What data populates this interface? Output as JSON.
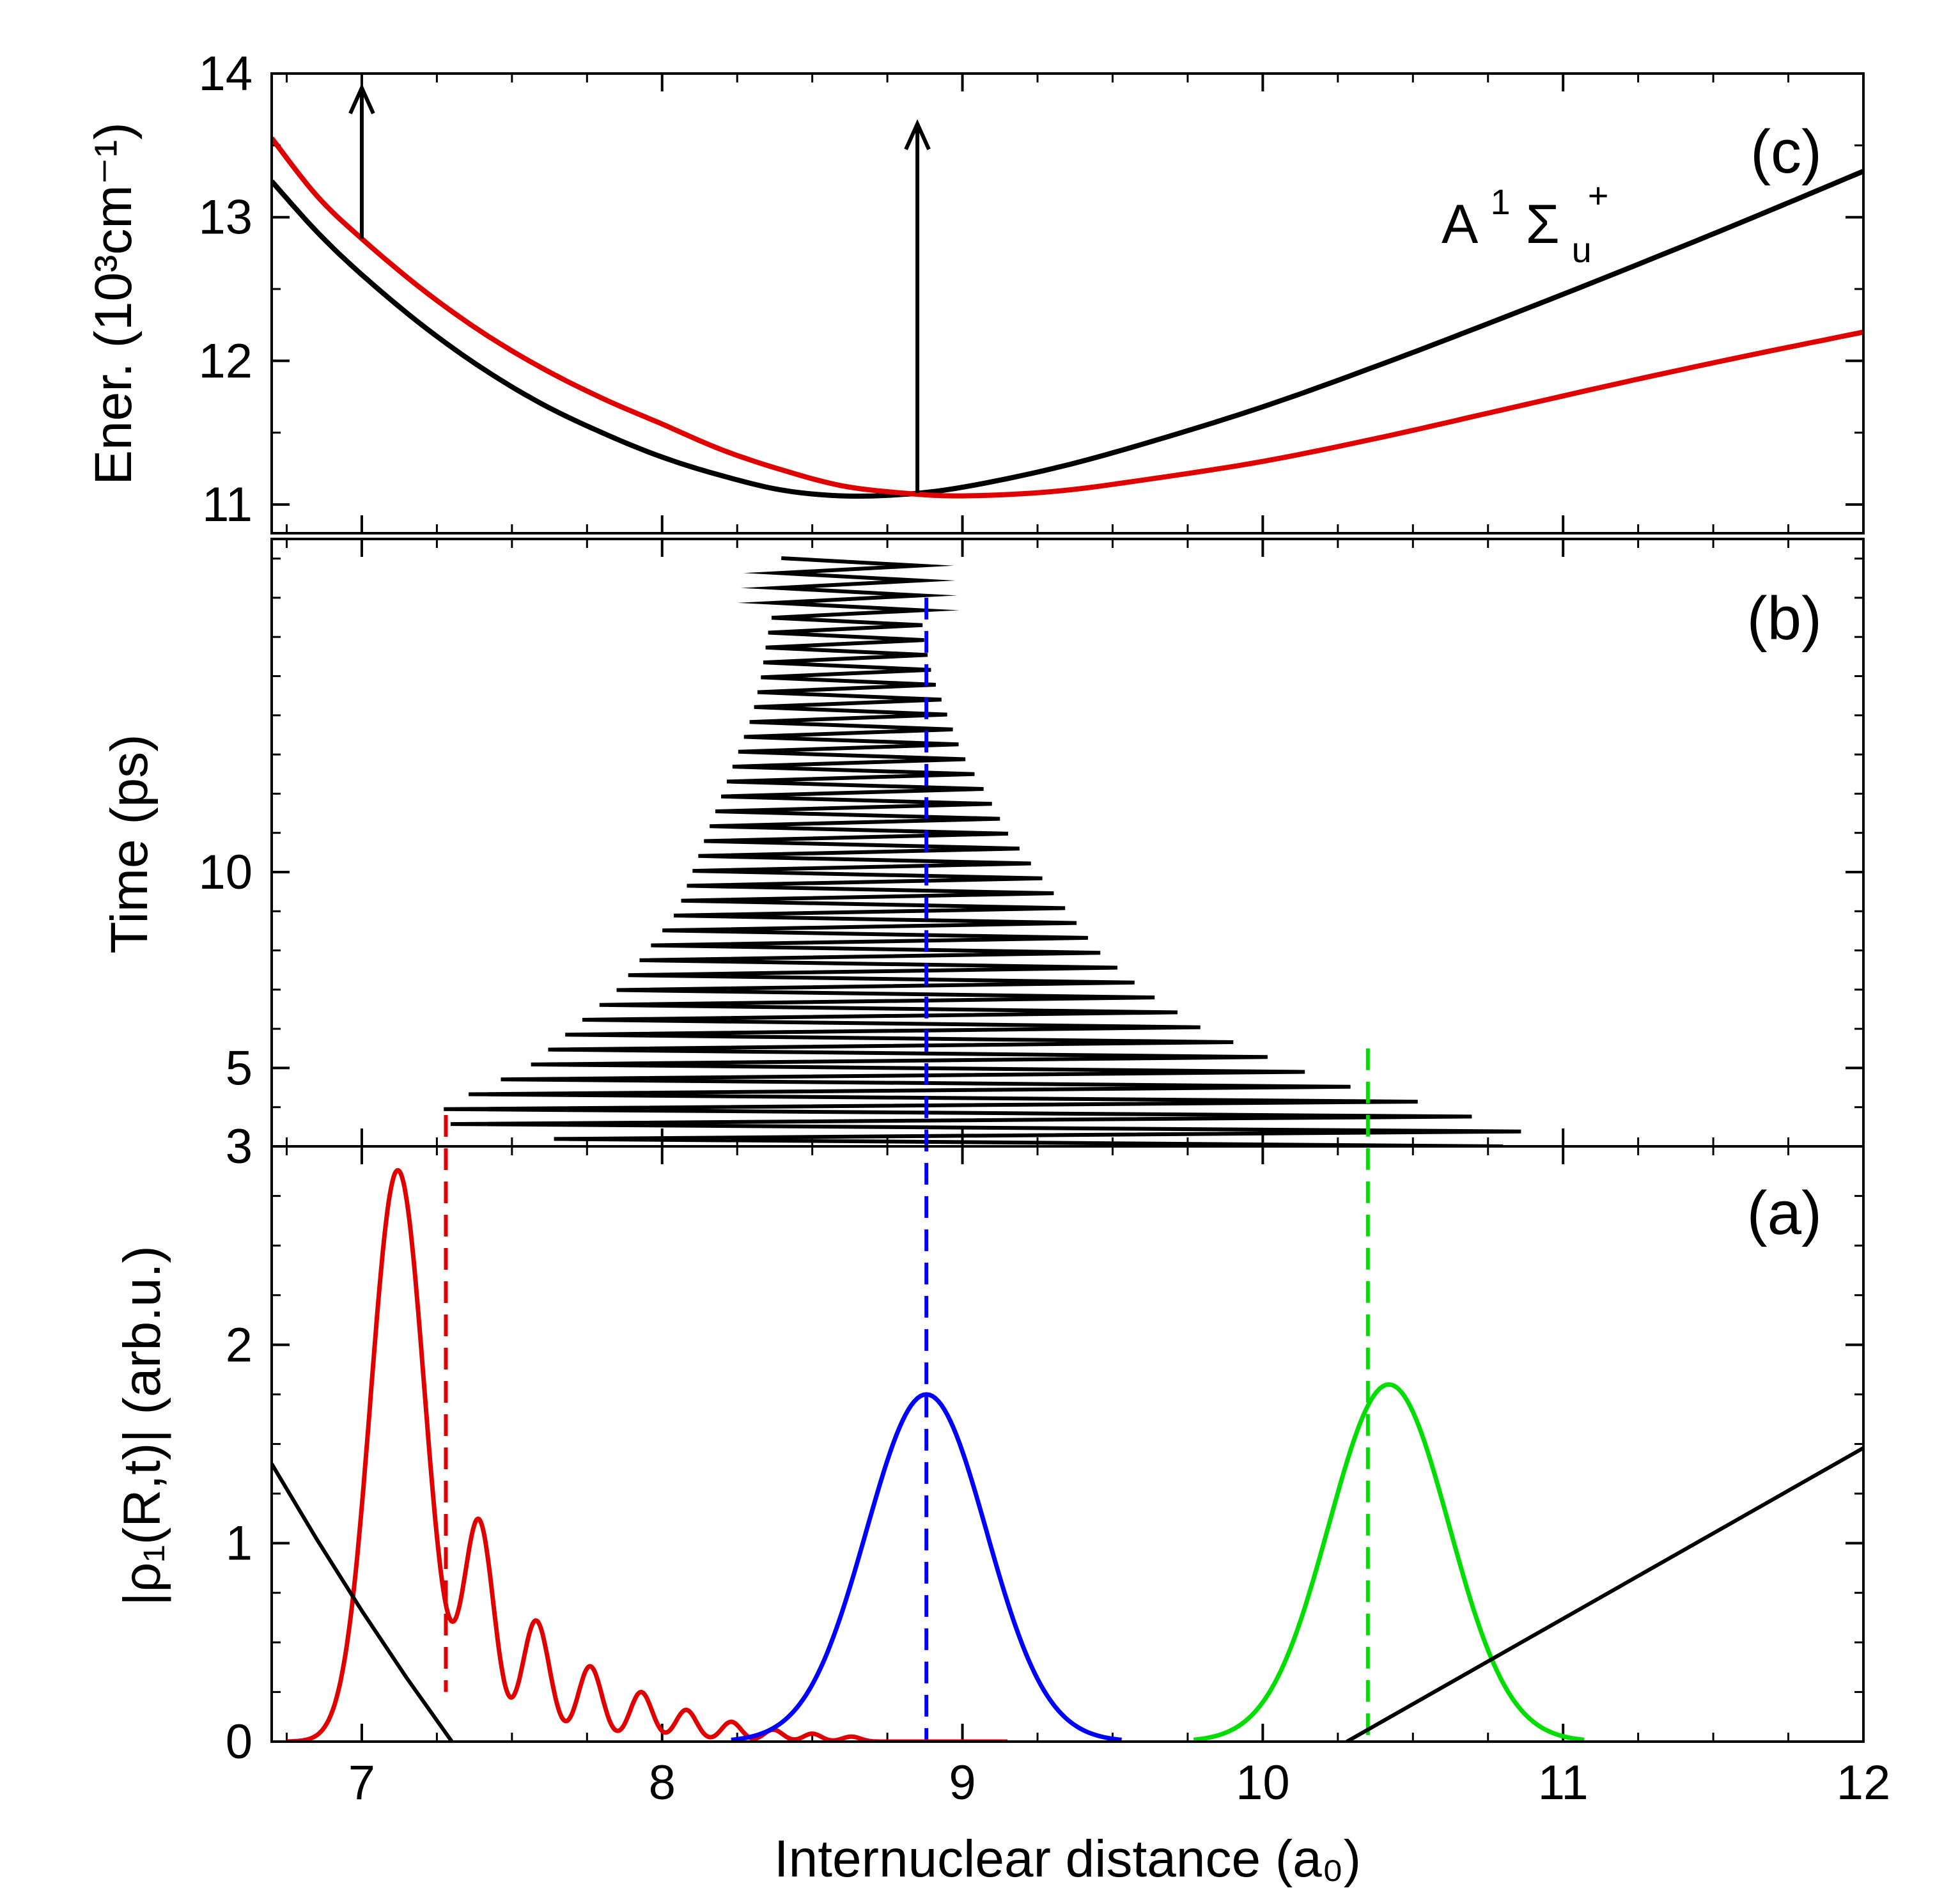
{
  "chart_data": [
    {
      "type": "line",
      "panel": "(c)",
      "ylabel": "Ener. (10³cm⁻¹)",
      "ylim": [
        10.8,
        14.0
      ],
      "xlim": [
        6.7,
        12.0
      ],
      "yticks": [
        "11",
        "12",
        "13",
        "14"
      ],
      "annotation": {
        "text": "A¹Σu⁺",
        "base": "A",
        "sup1": "1",
        "sigma": "Σ",
        "sub": "u",
        "sup2": "+"
      },
      "series": [
        {
          "color": "#000000",
          "x": [
            6.7,
            6.85,
            7.0,
            7.2,
            7.4,
            7.6,
            7.8,
            8.0,
            8.2,
            8.4,
            8.6,
            8.8,
            9.0,
            9.3,
            9.6,
            10.0,
            10.4,
            10.8,
            11.2,
            11.6,
            12.0
          ],
          "y": [
            13.25,
            12.9,
            12.6,
            12.25,
            11.95,
            11.7,
            11.5,
            11.33,
            11.2,
            11.1,
            11.06,
            11.07,
            11.12,
            11.25,
            11.42,
            11.68,
            11.98,
            12.3,
            12.63,
            12.97,
            13.32
          ]
        },
        {
          "color": "#e00000",
          "x": [
            6.7,
            6.85,
            7.0,
            7.2,
            7.4,
            7.6,
            7.8,
            8.0,
            8.2,
            8.4,
            8.6,
            8.8,
            9.0,
            9.3,
            9.6,
            10.0,
            10.4,
            10.8,
            11.2,
            11.6,
            12.0
          ],
          "y": [
            13.55,
            13.15,
            12.85,
            12.5,
            12.2,
            11.95,
            11.74,
            11.56,
            11.38,
            11.24,
            11.13,
            11.08,
            11.06,
            11.09,
            11.17,
            11.3,
            11.47,
            11.66,
            11.85,
            12.03,
            12.2
          ]
        }
      ],
      "arrows": [
        {
          "x": 7.0,
          "y_from": 12.85,
          "y_to": 13.9
        },
        {
          "x": 8.85,
          "y_from": 11.08,
          "y_to": 13.65
        }
      ]
    },
    {
      "type": "line",
      "panel": "(b)",
      "ylabel": "Time (ps)",
      "ylim": [
        3.0,
        18.5
      ],
      "xlim": [
        6.7,
        12.0
      ],
      "yticks": [
        "3",
        "5",
        "10"
      ],
      "series": [
        {
          "color": "#000000",
          "description": "zigzag trajectory",
          "envelope_t": [
            3.0,
            3.2,
            3.5,
            4.0,
            4.5,
            5.0,
            6.0,
            7.0,
            8.0,
            9.0,
            10.0,
            11.0,
            12.0,
            13.0,
            14.0,
            15.0,
            16.0,
            17.0,
            18.2
          ],
          "envelope_min": [
            8.4,
            7.6,
            7.3,
            7.27,
            7.4,
            7.55,
            7.7,
            7.85,
            7.95,
            8.05,
            8.1,
            8.15,
            8.2,
            8.25,
            8.3,
            8.33,
            8.35,
            8.38,
            8.4
          ],
          "envelope_max": [
            10.8,
            10.95,
            10.8,
            10.6,
            10.3,
            10.1,
            9.8,
            9.6,
            9.45,
            9.35,
            9.25,
            9.15,
            9.08,
            9.0,
            8.95,
            8.9,
            8.87,
            8.86,
            8.85
          ],
          "period_ps": 0.38
        }
      ],
      "markers": [
        {
          "color": "#e00000",
          "x": 7.28,
          "t": 3.8
        },
        {
          "color": "#0000ff",
          "x": 8.88,
          "t": 17.0
        },
        {
          "color": "#00dd00",
          "x": 10.35,
          "t": 5.5
        }
      ]
    },
    {
      "type": "line",
      "panel": "(a)",
      "ylabel": "|ρ₁(R,t)| (arb.u.)",
      "xlabel": "Internuclear distance (a₀)",
      "ylim": [
        0,
        3.0
      ],
      "xlim": [
        6.7,
        12.0
      ],
      "xticks": [
        "7",
        "8",
        "9",
        "10",
        "11",
        "12"
      ],
      "yticks": [
        "0",
        "1",
        "2",
        "3"
      ],
      "series": [
        {
          "color": "#e00000",
          "kind": "decaying-oscillation",
          "peaks": [
            {
              "x": 7.12,
              "y": 2.88,
              "w": 0.09
            },
            {
              "x": 7.39,
              "y": 1.09,
              "w": 0.05
            },
            {
              "x": 7.58,
              "y": 0.61,
              "w": 0.045
            },
            {
              "x": 7.76,
              "y": 0.38,
              "w": 0.04
            },
            {
              "x": 7.93,
              "y": 0.25,
              "w": 0.037
            },
            {
              "x": 8.08,
              "y": 0.16,
              "w": 0.035
            },
            {
              "x": 8.23,
              "y": 0.1,
              "w": 0.033
            },
            {
              "x": 8.37,
              "y": 0.06,
              "w": 0.032
            },
            {
              "x": 8.5,
              "y": 0.04,
              "w": 0.03
            },
            {
              "x": 8.63,
              "y": 0.025,
              "w": 0.03
            }
          ]
        },
        {
          "color": "#0000ff",
          "kind": "gaussian",
          "center": 8.88,
          "height": 1.75,
          "sigma": 0.2
        },
        {
          "color": "#00dd00",
          "kind": "gaussian",
          "center": 10.42,
          "height": 1.8,
          "sigma": 0.2
        },
        {
          "color": "#000000",
          "kind": "potential",
          "x": [
            6.7,
            6.85,
            7.0,
            7.15,
            7.3
          ],
          "y": [
            1.4,
            1.02,
            0.66,
            0.32,
            0.0
          ]
        },
        {
          "color": "#000000",
          "kind": "potential",
          "x": [
            10.28,
            12.0
          ],
          "y": [
            0.0,
            1.48
          ]
        }
      ],
      "markers": [
        {
          "color": "#e00000",
          "x": 7.28,
          "y": 0.25
        },
        {
          "color": "#0000ff",
          "x": 8.88,
          "y": 0.0
        },
        {
          "color": "#00dd00",
          "x": 10.35,
          "y": 0.0
        }
      ]
    }
  ]
}
